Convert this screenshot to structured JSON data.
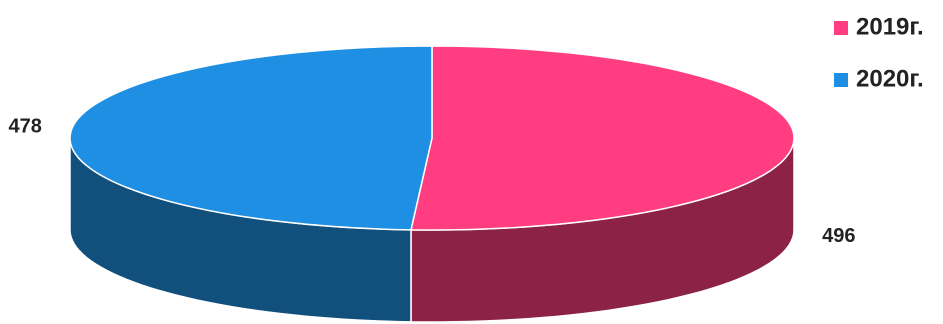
{
  "chart_data": {
    "type": "pie3d",
    "categories": [
      "2019г.",
      "2020г."
    ],
    "values": [
      496,
      478
    ],
    "colors": [
      "#ff3d80",
      "#1e8fe3"
    ],
    "legend": "top-right"
  }
}
